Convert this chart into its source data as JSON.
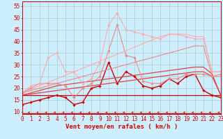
{
  "xlabel": "Vent moyen/en rafales ( km/h )",
  "x": [
    0,
    1,
    2,
    3,
    4,
    5,
    6,
    7,
    8,
    9,
    10,
    11,
    12,
    13,
    14,
    15,
    16,
    17,
    18,
    19,
    20,
    21,
    22,
    23
  ],
  "lines": [
    {
      "label": "dark_red_markers",
      "color": "#cc0000",
      "y": [
        13,
        14,
        15,
        16,
        17,
        16,
        13,
        14,
        20,
        21,
        31,
        22,
        27,
        25,
        21,
        20,
        21,
        24,
        22,
        25,
        26,
        19,
        17,
        16
      ],
      "marker": "D",
      "markersize": 1.8,
      "linewidth": 1.0
    },
    {
      "label": "dark_red_flat",
      "color": "#cc0000",
      "y": [
        17,
        17,
        17,
        17,
        17,
        17,
        17,
        17,
        17,
        17,
        17,
        17,
        17,
        17,
        17,
        17,
        17,
        17,
        17,
        17,
        17,
        17,
        17,
        17
      ],
      "marker": null,
      "markersize": 0,
      "linewidth": 0.9
    },
    {
      "label": "medium_red_trend1",
      "color": "#dd4444",
      "y": [
        17,
        17.5,
        18,
        18.5,
        19,
        19.5,
        20,
        20.5,
        21,
        21.5,
        22,
        22.5,
        23,
        23.5,
        24,
        24.5,
        25,
        25.5,
        26,
        26.5,
        27,
        27,
        25,
        17
      ],
      "marker": null,
      "markersize": 0,
      "linewidth": 0.9
    },
    {
      "label": "medium_red_trend2",
      "color": "#dd4444",
      "y": [
        17,
        18,
        19,
        20,
        21,
        21.5,
        22,
        22.5,
        23,
        23.5,
        24,
        24.5,
        25,
        25.5,
        26,
        26.5,
        27,
        27.5,
        28,
        28.5,
        29,
        29,
        26,
        17
      ],
      "marker": null,
      "markersize": 0,
      "linewidth": 0.9
    },
    {
      "label": "light_red_markers",
      "color": "#ee8888",
      "y": [
        18,
        20,
        22,
        22,
        22,
        21,
        16,
        20,
        22,
        25,
        36,
        47,
        34,
        33,
        23,
        22,
        22,
        24,
        24,
        26,
        26,
        26,
        25,
        26
      ],
      "marker": "D",
      "markersize": 1.8,
      "linewidth": 0.8
    },
    {
      "label": "lighter_red_markers",
      "color": "#ffaaaa",
      "y": [
        18,
        21,
        22,
        33,
        35,
        27,
        27,
        22,
        24,
        31,
        47,
        52,
        45,
        44,
        43,
        42,
        41,
        43,
        43,
        42,
        41,
        41,
        27,
        27
      ],
      "marker": "D",
      "markersize": 1.8,
      "linewidth": 0.8
    },
    {
      "label": "lightest_red_trend1",
      "color": "#ffaaaa",
      "y": [
        18,
        19.5,
        21,
        22.5,
        24,
        25.5,
        27,
        28.5,
        30,
        31.5,
        33,
        34.5,
        36,
        37.5,
        39,
        40.5,
        42,
        43,
        43,
        43,
        42,
        42,
        27,
        27
      ],
      "marker": null,
      "markersize": 0,
      "linewidth": 0.8
    },
    {
      "label": "light_red_trend2",
      "color": "#ee8888",
      "y": [
        18,
        19,
        20,
        21,
        22,
        23,
        24,
        25,
        26,
        27,
        28,
        29,
        30,
        31,
        32,
        33,
        34,
        35,
        36,
        37,
        38,
        38,
        25,
        25
      ],
      "marker": null,
      "markersize": 0,
      "linewidth": 0.8
    }
  ],
  "bg_color": "#cceeff",
  "grid_color": "#aacccc",
  "axis_color": "#cc0000",
  "ylim": [
    9,
    57
  ],
  "yticks": [
    10,
    15,
    20,
    25,
    30,
    35,
    40,
    45,
    50,
    55
  ],
  "xlim": [
    0,
    23
  ],
  "xlabel_fontsize": 6.5,
  "tick_fontsize": 5.5
}
